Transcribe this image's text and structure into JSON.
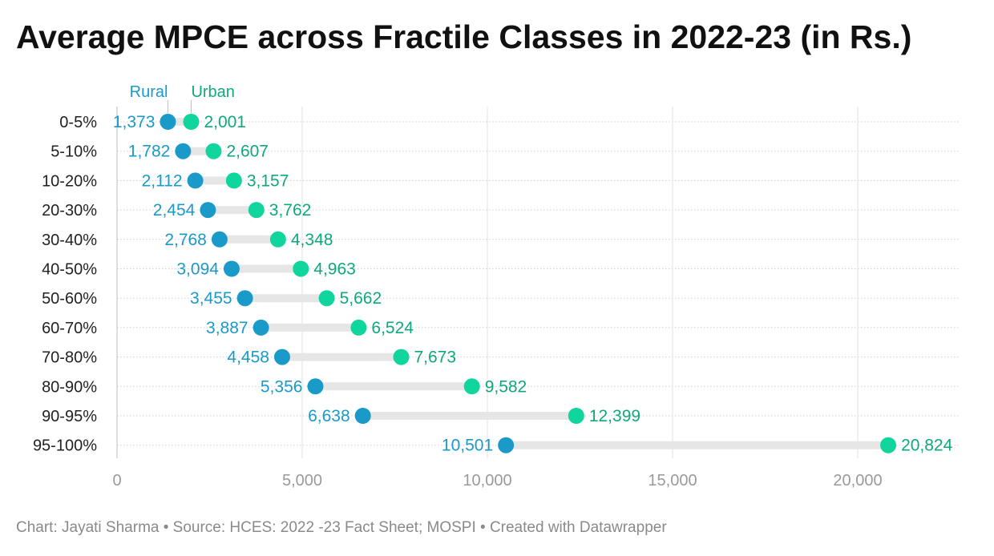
{
  "title": "Average MPCE across Fractile Classes in 2022-23 (in Rs.)",
  "footer": {
    "text": "Chart: Jayati Sharma • Source: HCES: 2022 -23 Fact Sheet; MOSPI • Created with Datawrapper"
  },
  "colors": {
    "rural": "#1a9ac9",
    "urban": "#10d59c",
    "urban_text": "#0fa87e",
    "connector": "#e6e6e6",
    "axis_text": "#9a9a9a",
    "category_text": "#222222"
  },
  "chart_data": {
    "type": "dot-range",
    "title": "Average MPCE across Fractile Classes in 2022-23 (in Rs.)",
    "categories": [
      "0-5%",
      "5-10%",
      "10-20%",
      "20-30%",
      "30-40%",
      "40-50%",
      "50-60%",
      "60-70%",
      "70-80%",
      "80-90%",
      "90-95%",
      "95-100%"
    ],
    "series": [
      {
        "name": "Rural",
        "values": [
          1373,
          1782,
          2112,
          2454,
          2768,
          3094,
          3455,
          3887,
          4458,
          5356,
          6638,
          10501
        ]
      },
      {
        "name": "Urban",
        "values": [
          2001,
          2607,
          3157,
          3762,
          4348,
          4963,
          5662,
          6524,
          7673,
          9582,
          12399,
          20824
        ]
      }
    ],
    "value_labels": {
      "Rural": [
        "1,373",
        "1,782",
        "2,112",
        "2,454",
        "2,768",
        "3,094",
        "3,455",
        "3,887",
        "4,458",
        "5,356",
        "6,638",
        "10,501"
      ],
      "Urban": [
        "2,001",
        "2,607",
        "3,157",
        "3,762",
        "4,348",
        "4,963",
        "5,662",
        "6,524",
        "7,673",
        "9,582",
        "12,399",
        "20,824"
      ]
    },
    "xlim": [
      0,
      23000
    ],
    "xticks": [
      0,
      5000,
      10000,
      15000,
      20000
    ],
    "xtick_labels": [
      "0",
      "5,000",
      "10,000",
      "15,000",
      "20,000"
    ],
    "xlabel": "",
    "ylabel": "",
    "grid": true,
    "legend": "inline labels above first row"
  }
}
